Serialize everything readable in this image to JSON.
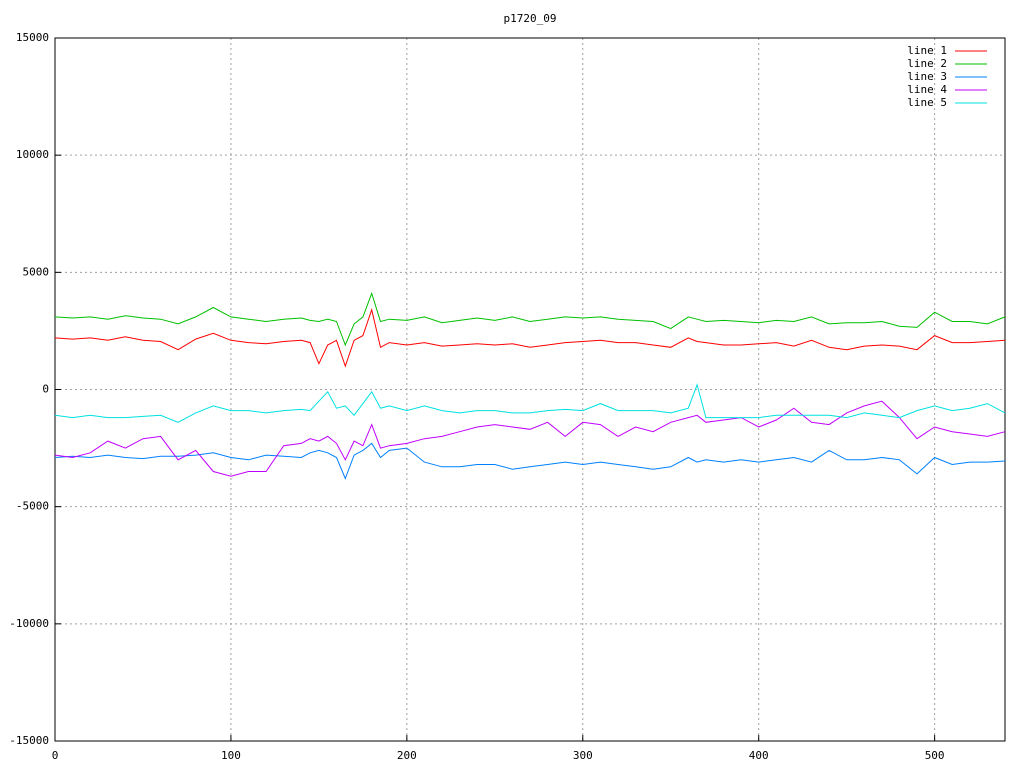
{
  "chart_data": {
    "type": "line",
    "title": "p1720_09",
    "x": [
      0,
      10,
      20,
      30,
      40,
      50,
      60,
      70,
      80,
      90,
      100,
      110,
      120,
      130,
      140,
      145,
      150,
      155,
      160,
      165,
      170,
      175,
      180,
      185,
      190,
      200,
      210,
      220,
      230,
      240,
      250,
      260,
      270,
      280,
      290,
      300,
      310,
      320,
      330,
      340,
      350,
      360,
      365,
      370,
      380,
      390,
      400,
      410,
      420,
      430,
      440,
      450,
      460,
      470,
      480,
      490,
      500,
      510,
      520,
      530,
      540
    ],
    "series": [
      {
        "name": "line 1",
        "color": "#ff0000",
        "values": [
          2200,
          2150,
          2200,
          2100,
          2250,
          2100,
          2050,
          1700,
          2150,
          2400,
          2100,
          2000,
          1950,
          2050,
          2100,
          2000,
          1100,
          1900,
          2100,
          1000,
          2100,
          2300,
          3400,
          1800,
          2000,
          1900,
          2000,
          1850,
          1900,
          1950,
          1900,
          1950,
          1800,
          1900,
          2000,
          2050,
          2100,
          2000,
          2000,
          1900,
          1800,
          2200,
          2050,
          2000,
          1900,
          1900,
          1950,
          2000,
          1850,
          2100,
          1800,
          1700,
          1850,
          1900,
          1850,
          1700,
          2300,
          2000,
          2000,
          2050,
          2100
        ]
      },
      {
        "name": "line 2",
        "color": "#00c000",
        "values": [
          3100,
          3050,
          3100,
          3000,
          3150,
          3050,
          3000,
          2800,
          3100,
          3500,
          3100,
          3000,
          2900,
          3000,
          3050,
          2950,
          2900,
          3000,
          2900,
          1900,
          2800,
          3100,
          4100,
          2900,
          3000,
          2950,
          3100,
          2850,
          2950,
          3050,
          2950,
          3100,
          2900,
          3000,
          3100,
          3050,
          3100,
          3000,
          2950,
          2900,
          2600,
          3100,
          3000,
          2900,
          2950,
          2900,
          2850,
          2950,
          2900,
          3100,
          2800,
          2850,
          2850,
          2900,
          2700,
          2650,
          3300,
          2900,
          2900,
          2800,
          3100
        ]
      },
      {
        "name": "line 3",
        "color": "#0080ff",
        "values": [
          -2900,
          -2850,
          -2900,
          -2800,
          -2900,
          -2950,
          -2850,
          -2850,
          -2800,
          -2700,
          -2900,
          -3000,
          -2800,
          -2850,
          -2900,
          -2700,
          -2600,
          -2700,
          -2900,
          -3800,
          -2800,
          -2600,
          -2300,
          -2900,
          -2600,
          -2500,
          -3100,
          -3300,
          -3300,
          -3200,
          -3200,
          -3400,
          -3300,
          -3200,
          -3100,
          -3200,
          -3100,
          -3200,
          -3300,
          -3400,
          -3300,
          -2900,
          -3100,
          -3000,
          -3100,
          -3000,
          -3100,
          -3000,
          -2900,
          -3100,
          -2600,
          -3000,
          -3000,
          -2900,
          -3000,
          -3600,
          -2900,
          -3200,
          -3100,
          -3100,
          -3050
        ]
      },
      {
        "name": "line 4",
        "color": "#c000ff",
        "values": [
          -2800,
          -2900,
          -2700,
          -2200,
          -2500,
          -2100,
          -2000,
          -3000,
          -2600,
          -3500,
          -3700,
          -3500,
          -3500,
          -2400,
          -2300,
          -2100,
          -2200,
          -2000,
          -2300,
          -3000,
          -2200,
          -2400,
          -1500,
          -2500,
          -2400,
          -2300,
          -2100,
          -2000,
          -1800,
          -1600,
          -1500,
          -1600,
          -1700,
          -1400,
          -2000,
          -1400,
          -1500,
          -2000,
          -1600,
          -1800,
          -1400,
          -1200,
          -1100,
          -1400,
          -1300,
          -1200,
          -1600,
          -1300,
          -800,
          -1400,
          -1500,
          -1000,
          -700,
          -500,
          -1200,
          -2100,
          -1600,
          -1800,
          -1900,
          -2000,
          -1800
        ]
      },
      {
        "name": "line 5",
        "color": "#00e0e0",
        "values": [
          -1100,
          -1200,
          -1100,
          -1200,
          -1200,
          -1150,
          -1100,
          -1400,
          -1000,
          -700,
          -900,
          -900,
          -1000,
          -900,
          -850,
          -900,
          -500,
          -100,
          -800,
          -700,
          -1100,
          -600,
          -100,
          -800,
          -700,
          -900,
          -700,
          -900,
          -1000,
          -900,
          -900,
          -1000,
          -1000,
          -900,
          -850,
          -900,
          -600,
          -900,
          -900,
          -900,
          -1000,
          -800,
          200,
          -1200,
          -1200,
          -1200,
          -1200,
          -1100,
          -1100,
          -1100,
          -1100,
          -1200,
          -1000,
          -1100,
          -1200,
          -900,
          -700,
          -900,
          -800,
          -600,
          -1000
        ]
      }
    ],
    "xlim": [
      0,
      540
    ],
    "xticks": [
      0,
      100,
      200,
      300,
      400,
      500
    ],
    "ylim": [
      -15000,
      15000
    ],
    "yticks": [
      -15000,
      -10000,
      -5000,
      0,
      5000,
      10000,
      15000
    ],
    "grid": true,
    "legend": "top-right"
  }
}
